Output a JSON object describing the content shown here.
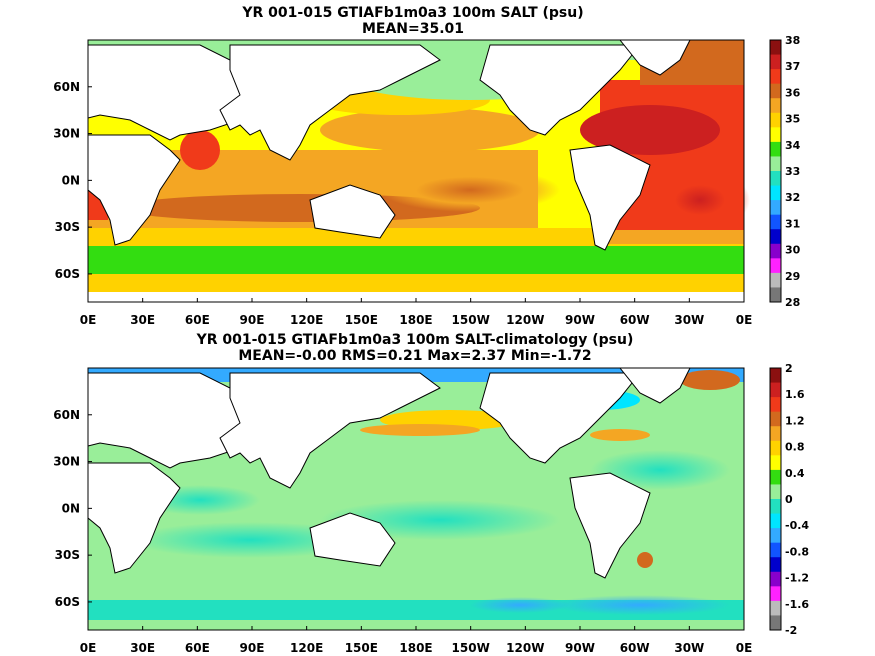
{
  "chart_data": [
    {
      "type": "heatmap",
      "title": "YR 001-015 GTIAFb1m0a3 100m SALT (psu)",
      "subtitle": "MEAN=35.01",
      "xticks": [
        "0E",
        "30E",
        "60E",
        "90E",
        "120E",
        "150E",
        "180E",
        "150W",
        "120W",
        "90W",
        "60W",
        "30W",
        "0E"
      ],
      "x_values": [
        0,
        30,
        60,
        90,
        120,
        150,
        180,
        210,
        240,
        270,
        300,
        330,
        360
      ],
      "yticks": [
        "60N",
        "30N",
        "0N",
        "30S",
        "60S"
      ],
      "y_values": [
        60,
        30,
        0,
        -30,
        -60
      ],
      "xlim": [
        0,
        360
      ],
      "ylim": [
        -78,
        90
      ],
      "colorbar": {
        "labels": [
          "38",
          "37",
          "36",
          "35",
          "34",
          "33",
          "32",
          "31",
          "30",
          "29",
          "28"
        ],
        "values": [
          38,
          37,
          36,
          35,
          34,
          33,
          32,
          31,
          30,
          29,
          28
        ],
        "colors": [
          "#8b1010",
          "#cc2020",
          "#f03a1a",
          "#d2691e",
          "#f4a623",
          "#ffd200",
          "#ffff00",
          "#33dd11",
          "#99ee99",
          "#22e0c0",
          "#00e5ff",
          "#33aaff",
          "#1155ff",
          "#0000cc",
          "#8800cc",
          "#ff22ff",
          "#bbbbbb",
          "#777777"
        ]
      }
    },
    {
      "type": "heatmap",
      "title": "YR 001-015 GTIAFb1m0a3 100m SALT-climatology (psu)",
      "subtitle": "MEAN=-0.00   RMS=0.21   Max=2.37   Min=-1.72",
      "xticks": [
        "0E",
        "30E",
        "60E",
        "90E",
        "120E",
        "150E",
        "180E",
        "150W",
        "120W",
        "90W",
        "60W",
        "30W",
        "0E"
      ],
      "x_values": [
        0,
        30,
        60,
        90,
        120,
        150,
        180,
        210,
        240,
        270,
        300,
        330,
        360
      ],
      "yticks": [
        "60N",
        "30N",
        "0N",
        "30S",
        "60S"
      ],
      "y_values": [
        60,
        30,
        0,
        -30,
        -60
      ],
      "xlim": [
        0,
        360
      ],
      "ylim": [
        -78,
        90
      ],
      "colorbar": {
        "labels": [
          "2",
          "1.6",
          "1.2",
          "0.8",
          "0.4",
          "0",
          "-0.4",
          "-0.8",
          "-1.2",
          "-1.6",
          "-2"
        ],
        "values": [
          2,
          1.6,
          1.2,
          0.8,
          0.4,
          0,
          -0.4,
          -0.8,
          -1.2,
          -1.6,
          -2
        ],
        "colors": [
          "#8b1010",
          "#cc2020",
          "#f03a1a",
          "#d2691e",
          "#f4a623",
          "#ffd200",
          "#ffff00",
          "#33dd11",
          "#99ee99",
          "#22e0c0",
          "#00e5ff",
          "#33aaff",
          "#1155ff",
          "#0000cc",
          "#8800cc",
          "#ff22ff",
          "#bbbbbb",
          "#777777"
        ]
      }
    }
  ]
}
